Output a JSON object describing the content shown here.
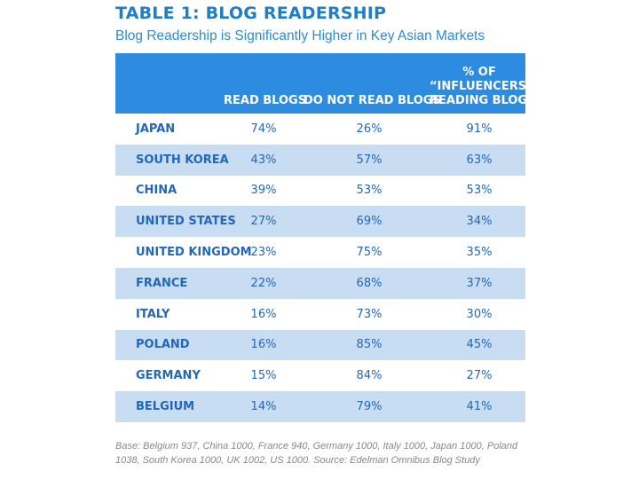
{
  "chart_data": {
    "type": "table",
    "title": "TABLE 1: BLOG READERSHIP",
    "subtitle": "Blog Readership is Significantly Higher in Key Asian Markets",
    "columns": [
      {
        "key": "country",
        "label": ""
      },
      {
        "key": "read",
        "label": "READ BLOGS"
      },
      {
        "key": "not_read",
        "label": "DO NOT READ BLOGS"
      },
      {
        "key": "influencers",
        "label_lines": [
          "% OF",
          "“INFLUENCERS”*",
          "READING BLOGS"
        ]
      }
    ],
    "rows": [
      {
        "country": "JAPAN",
        "read": "74%",
        "not_read": "26%",
        "influencers": "91%"
      },
      {
        "country": "SOUTH KOREA",
        "read": "43%",
        "not_read": "57%",
        "influencers": "63%"
      },
      {
        "country": "CHINA",
        "read": "39%",
        "not_read": "53%",
        "influencers": "53%"
      },
      {
        "country": "UNITED STATES",
        "read": "27%",
        "not_read": "69%",
        "influencers": "34%"
      },
      {
        "country": "UNITED KINGDOM",
        "read": "23%",
        "not_read": "75%",
        "influencers": "35%"
      },
      {
        "country": "FRANCE",
        "read": "22%",
        "not_read": "68%",
        "influencers": "37%"
      },
      {
        "country": "ITALY",
        "read": "16%",
        "not_read": "73%",
        "influencers": "30%"
      },
      {
        "country": "POLAND",
        "read": "16%",
        "not_read": "85%",
        "influencers": "45%"
      },
      {
        "country": "GERMANY",
        "read": "15%",
        "not_read": "84%",
        "influencers": "27%"
      },
      {
        "country": "BELGIUM",
        "read": "14%",
        "not_read": "79%",
        "influencers": "41%"
      }
    ],
    "footnote": "Base: Belgium 937, China 1000, France 940, Germany 1000, Italy 1000, Japan 1000, Poland 1038, South Korea 1000, UK 1002, US 1000. Source: Edelman Omnibus Blog Study"
  },
  "colors": {
    "title": "#1f7ec4",
    "header_bg": "#2e8ce0",
    "header_text": "#ffffff",
    "row_alt_bg": "#c8dcf2",
    "cell_text": "#2268b8",
    "footnote_text": "#888888"
  }
}
